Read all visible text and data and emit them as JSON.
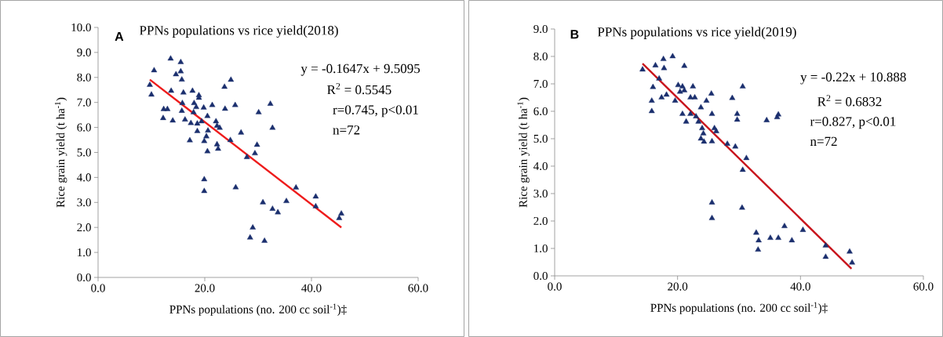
{
  "chart_data": [
    {
      "type": "scatter",
      "title": "PPNs populations vs rice yield(2018)",
      "xlabel": "PPNs populations (no. 200 cc soil$^{-1}$)‡",
      "ylabel": "Rice grain yield (t ha$^{-1}$)",
      "xlim": [
        0,
        60
      ],
      "xticks": [
        {
          "value": 0,
          "label": "0.0"
        },
        {
          "value": 20,
          "label": "20.0"
        },
        {
          "value": 40,
          "label": "40.0"
        },
        {
          "value": 60,
          "label": "60.0"
        }
      ],
      "ylim": [
        0,
        10
      ],
      "yticks": [
        {
          "value": 0,
          "label": "0.0"
        },
        {
          "value": 1,
          "label": "1.0"
        },
        {
          "value": 2,
          "label": "2.0"
        },
        {
          "value": 3,
          "label": "3.0"
        },
        {
          "value": 4,
          "label": "4.0"
        },
        {
          "value": 5,
          "label": "5.0"
        },
        {
          "value": 6,
          "label": "6.0"
        },
        {
          "value": 7,
          "label": "7.0"
        },
        {
          "value": 8,
          "label": "8.0"
        },
        {
          "value": 9,
          "label": "9.0"
        },
        {
          "value": 10,
          "label": "10.0"
        }
      ],
      "annotations": [
        "A",
        "y = -0.1647x + 9.5095",
        "R$^{2}$ = 0.5545",
        "r=0.745, p<0.01",
        "n=72"
      ],
      "series": [
        {
          "color": "#1b2f6e",
          "marker": "triangle",
          "x": [
            10.5,
            9.7,
            10.0,
            13.6,
            15.5,
            15.5,
            14.6,
            15.7,
            13.7,
            16.0,
            17.7,
            18.9,
            18.9,
            12.3,
            13.0,
            15.8,
            15.7,
            18.0,
            18.4,
            19.8,
            21.4,
            23.7,
            24.9,
            25.7,
            23.8,
            12.2,
            14.0,
            16.3,
            17.9,
            17.4,
            18.6,
            19.4,
            20.5,
            22.1,
            22.3,
            22.8,
            18.6,
            20.6,
            20.3,
            19.9,
            17.2,
            22.3,
            22.5,
            20.5,
            24.8,
            26.8,
            30.1,
            32.3,
            32.7,
            29.8,
            29.4,
            27.9,
            19.9,
            19.9,
            25.8,
            30.9,
            32.7,
            33.7,
            29.0,
            28.5,
            31.2,
            35.3,
            37.1,
            40.8,
            40.8,
            45.6,
            45.2
          ],
          "values": [
            8.28,
            7.7,
            7.31,
            8.75,
            8.61,
            8.24,
            8.12,
            7.91,
            7.46,
            7.39,
            7.46,
            7.28,
            7.18,
            6.73,
            6.73,
            6.97,
            6.66,
            6.97,
            6.81,
            6.79,
            6.89,
            7.62,
            7.9,
            6.89,
            6.74,
            6.37,
            6.27,
            6.31,
            6.6,
            6.17,
            6.15,
            6.24,
            6.45,
            6.24,
            6.06,
            5.98,
            5.85,
            5.87,
            5.64,
            5.45,
            5.48,
            5.32,
            5.14,
            5.04,
            5.49,
            5.79,
            6.6,
            6.94,
            5.98,
            5.3,
            4.96,
            4.81,
            3.92,
            3.45,
            3.6,
            3.0,
            2.74,
            2.6,
            1.99,
            1.59,
            1.46,
            3.05,
            3.59,
            3.23,
            2.84,
            2.55,
            2.37
          ]
        },
        {
          "type": "line",
          "marker": "none",
          "color": "#ee1c1c",
          "x": [
            9.7,
            45.6
          ],
          "values": [
            7.91,
            2.0
          ]
        }
      ]
    },
    {
      "type": "scatter",
      "title": "PPNs populations vs rice yield(2019)",
      "xlabel": "PPNs populations (no. 200 cc soil$^{-1}$)‡",
      "ylabel": "Rice grain yield (t ha$^{-1}$)",
      "xlim": [
        0,
        60
      ],
      "xticks": [
        {
          "value": 0,
          "label": "0.0"
        },
        {
          "value": 20,
          "label": "20.0"
        },
        {
          "value": 40,
          "label": "40.0"
        },
        {
          "value": 60,
          "label": "60.0"
        }
      ],
      "ylim": [
        0,
        9
      ],
      "yticks": [
        {
          "value": 0,
          "label": "0.0"
        },
        {
          "value": 1,
          "label": "1.0"
        },
        {
          "value": 2,
          "label": "2.0"
        },
        {
          "value": 3,
          "label": "3.0"
        },
        {
          "value": 4,
          "label": "4.0"
        },
        {
          "value": 5,
          "label": "5.0"
        },
        {
          "value": 6,
          "label": "6.0"
        },
        {
          "value": 7,
          "label": "7.0"
        },
        {
          "value": 8,
          "label": "8.0"
        },
        {
          "value": 9,
          "label": "9.0"
        }
      ],
      "annotations": [
        "B",
        "y = -0.22x + 10.888",
        "R$^{2}$ = 0.6832",
        "r=0.827, p<0.01",
        "n=72"
      ],
      "series": [
        {
          "color": "#1b2f6e",
          "marker": "triangle",
          "x": [
            14.3,
            16.4,
            17.7,
            19.2,
            17.8,
            21.1,
            17.0,
            16.0,
            15.8,
            15.8,
            17.4,
            18.2,
            19.6,
            20.1,
            20.8,
            20.4,
            21.1,
            22.5,
            22.1,
            22.8,
            24.7,
            25.5,
            23.8,
            20.8,
            22.1,
            23.0,
            21.4,
            23.4,
            25.6,
            24.0,
            24.2,
            23.8,
            24.3,
            26.0,
            26.3,
            25.6,
            28.1,
            29.4,
            28.9,
            30.6,
            29.7,
            29.7,
            31.2,
            30.6,
            25.6,
            25.6,
            30.5,
            32.8,
            33.2,
            33.1,
            34.5,
            36.2,
            36.4,
            35.1,
            36.4,
            37.4,
            38.6,
            40.4,
            44.1,
            44.1,
            48.0,
            48.4
          ],
          "values": [
            7.52,
            7.67,
            7.9,
            8.0,
            7.57,
            7.65,
            7.19,
            6.88,
            6.38,
            6.0,
            6.5,
            6.6,
            6.38,
            6.95,
            6.9,
            6.71,
            6.76,
            6.9,
            6.5,
            6.5,
            6.38,
            6.64,
            6.14,
            5.9,
            5.9,
            5.81,
            5.62,
            5.62,
            5.9,
            5.38,
            5.19,
            5.0,
            4.89,
            5.38,
            5.27,
            4.9,
            4.81,
            4.71,
            6.48,
            6.9,
            5.9,
            5.69,
            4.29,
            3.86,
            2.67,
            2.1,
            2.48,
            1.57,
            1.29,
            0.95,
            5.67,
            5.78,
            5.88,
            1.38,
            1.38,
            1.81,
            1.29,
            1.67,
            1.1,
            0.69,
            0.88,
            0.48
          ]
        },
        {
          "type": "line",
          "marker": "none",
          "color": "#c8141c",
          "x": [
            14.3,
            48.3
          ],
          "values": [
            7.74,
            0.26
          ]
        }
      ]
    }
  ]
}
